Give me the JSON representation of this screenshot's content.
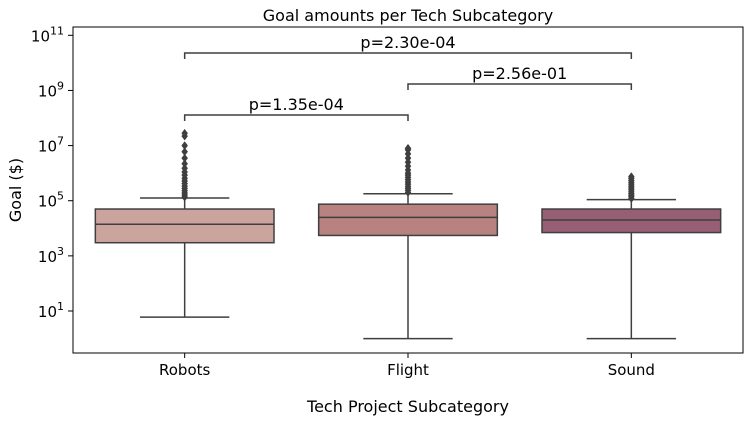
{
  "chart_data": {
    "type": "box",
    "title": "Goal amounts per Tech Subcategory",
    "xlabel": "Tech Project Subcategory",
    "ylabel": "Goal ($)",
    "yscale": "log",
    "ylim": [
      0.3,
      200000000000
    ],
    "yticks": [
      {
        "value": 10,
        "base": "10",
        "exp": "1"
      },
      {
        "value": 1000,
        "base": "10",
        "exp": "3"
      },
      {
        "value": 100000,
        "base": "10",
        "exp": "5"
      },
      {
        "value": 10000000,
        "base": "10",
        "exp": "7"
      },
      {
        "value": 1000000000,
        "base": "10",
        "exp": "9"
      },
      {
        "value": 100000000000,
        "base": "10",
        "exp": "11"
      }
    ],
    "categories": [
      "Robots",
      "Flight",
      "Sound"
    ],
    "colors": [
      "#cba49e",
      "#b7827f",
      "#975f73"
    ],
    "boxes": [
      {
        "whisker_low": 6,
        "q1": 3000,
        "median": 14000,
        "q3": 50000,
        "whisker_high": 125000,
        "outliers": [
          135000,
          160000,
          190000,
          230000,
          280000,
          340000,
          420000,
          520000,
          650000,
          850000,
          1100000,
          1500000,
          2200000,
          3500000,
          6000000,
          10000000,
          22000000,
          28000000
        ]
      },
      {
        "whisker_low": 1,
        "q1": 5500,
        "median": 25000,
        "q3": 75000,
        "whisker_high": 180000,
        "outliers": [
          200000,
          240000,
          280000,
          330000,
          400000,
          480000,
          580000,
          700000,
          850000,
          1000000,
          1300000,
          1800000,
          2500000,
          3500000,
          5000000,
          7000000,
          8000000
        ]
      },
      {
        "whisker_low": 1,
        "q1": 7000,
        "median": 20000,
        "q3": 50000,
        "whisker_high": 110000,
        "outliers": [
          120000,
          140000,
          160000,
          180000,
          210000,
          250000,
          290000,
          340000,
          400000,
          470000,
          550000,
          650000,
          750000
        ]
      }
    ],
    "annotations": [
      {
        "from": 0,
        "to": 1,
        "text": "p=1.35e-04",
        "level": 0
      },
      {
        "from": 1,
        "to": 2,
        "text": "p=2.56e-01",
        "level": 1
      },
      {
        "from": 0,
        "to": 2,
        "text": "p=2.30e-04",
        "level": 2
      }
    ]
  }
}
